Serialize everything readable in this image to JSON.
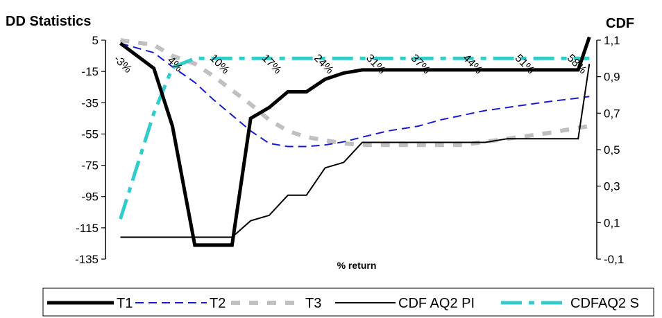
{
  "chart_data": {
    "type": "line",
    "left_axis_title": "DD Statistics",
    "right_axis_title": "CDF",
    "xlabel": "% return",
    "categories": [
      "-3%",
      "4%",
      "10%",
      "17%",
      "24%",
      "31%",
      "37%",
      "44%",
      "51%",
      "58%"
    ],
    "ylim_left": [
      -135,
      5
    ],
    "yticks_left": [
      "5",
      "-15",
      "-35",
      "-55",
      "-75",
      "-95",
      "-115",
      "-135"
    ],
    "ylim_right": [
      -0.1,
      1.1
    ],
    "yticks_right": [
      "1,1",
      "0,9",
      "0,7",
      "0,5",
      "0,3",
      "0,1",
      "-0,1"
    ],
    "grid": false,
    "legend_position": "bottom",
    "x": [
      -3,
      1.5,
      4,
      7,
      9.5,
      12,
      14.5,
      17,
      19.5,
      22,
      24.5,
      27,
      29.5,
      33,
      37,
      40,
      43,
      46,
      49,
      52,
      55,
      58.5,
      60
    ],
    "series": [
      {
        "name": "T1",
        "axis": "left",
        "color": "#000000",
        "style": "solid-thick",
        "values": [
          3,
          -13,
          -50,
          -126,
          -126,
          -126,
          -45,
          -38,
          -28,
          -28,
          -20,
          -16,
          -14,
          -14,
          -14,
          -14,
          -14,
          -14,
          -14,
          -14,
          -14,
          -14,
          7
        ]
      },
      {
        "name": "T2",
        "axis": "left",
        "color": "#1a1acc",
        "style": "dashed",
        "values": [
          3,
          -3,
          -12,
          -22,
          -33,
          -43,
          -53,
          -61,
          -63,
          -63,
          -62,
          -60,
          -57,
          -53,
          -50,
          -46,
          -43,
          -40,
          -38,
          -36,
          -34,
          -32,
          -31
        ]
      },
      {
        "name": "T3",
        "axis": "left",
        "color": "#c0c0c0",
        "style": "dotted-thick",
        "values": [
          5,
          2,
          -5,
          -10,
          -18,
          -27,
          -36,
          -46,
          -53,
          -57,
          -59,
          -61,
          -62,
          -62,
          -62,
          -62,
          -62,
          -60,
          -58,
          -56,
          -54,
          -51,
          -50
        ]
      },
      {
        "name": "CDF AQ2 PI",
        "axis": "right",
        "color": "#000000",
        "style": "solid-thin",
        "values": [
          0.02,
          0.02,
          0.02,
          0.02,
          0.02,
          0.02,
          0.11,
          0.14,
          0.25,
          0.25,
          0.4,
          0.43,
          0.54,
          0.54,
          0.54,
          0.54,
          0.54,
          0.54,
          0.56,
          0.56,
          0.56,
          0.56,
          0.97
        ]
      },
      {
        "name": "CDFAQ2 S",
        "axis": "right",
        "color": "#33cccc",
        "style": "dashdot",
        "values": [
          0.12,
          0.7,
          0.95,
          1.0,
          1.0,
          1.0,
          1.0,
          1.0,
          1.0,
          1.0,
          1.0,
          1.0,
          1.0,
          1.0,
          1.0,
          1.0,
          1.0,
          1.0,
          1.0,
          1.0,
          1.0,
          1.0,
          1.0
        ]
      }
    ]
  }
}
